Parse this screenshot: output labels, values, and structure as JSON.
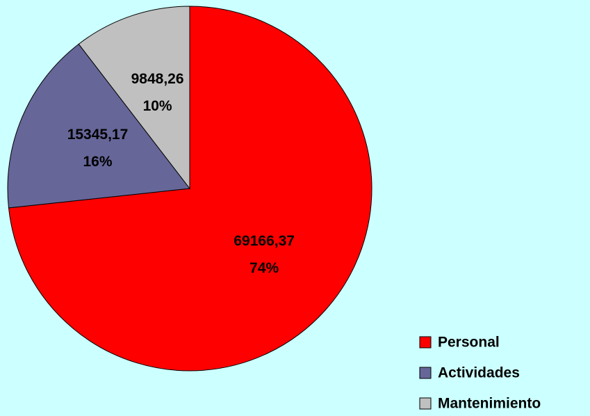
{
  "chart_data": {
    "type": "pie",
    "categories": [
      "Personal",
      "Actividades",
      "Mantenimiento"
    ],
    "values": [
      69166.37,
      15345.17,
      9848.26
    ],
    "value_labels": [
      "69166,37",
      "15345,17",
      "9848,26"
    ],
    "percents": [
      74,
      16,
      10
    ],
    "percent_labels": [
      "74%",
      "16%",
      "10%"
    ],
    "colors": [
      "#ff0000",
      "#666699",
      "#c0c0c0"
    ],
    "legend": "bottom-right"
  }
}
